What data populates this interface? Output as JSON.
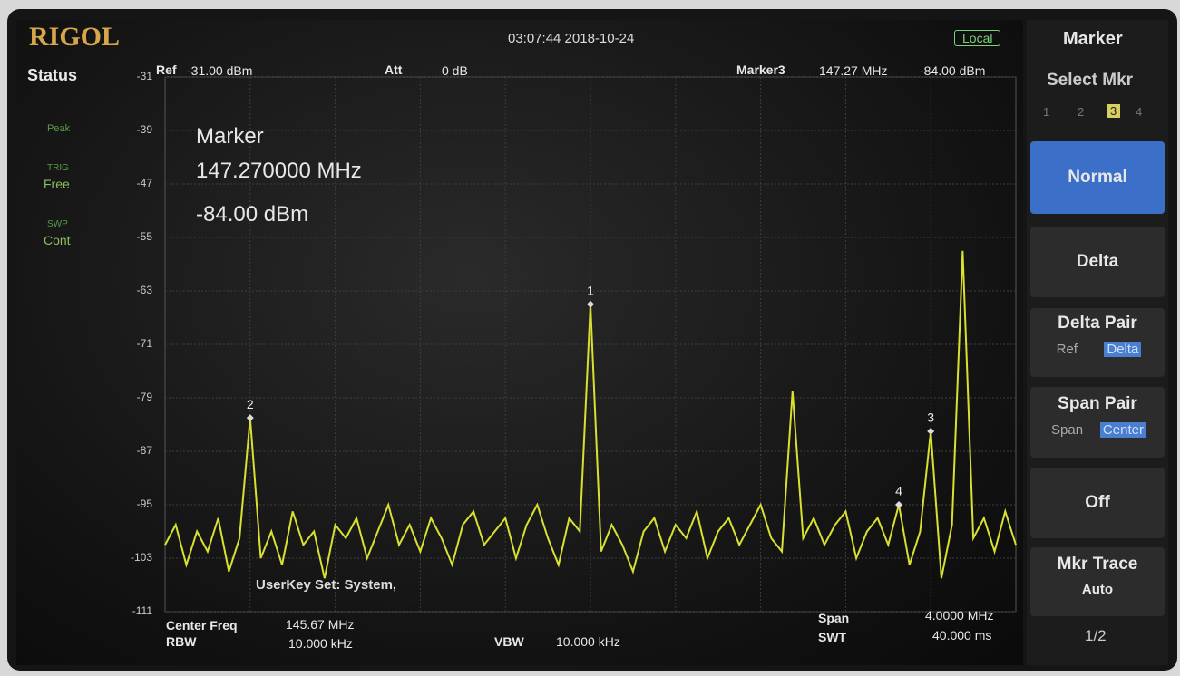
{
  "header": {
    "brand": "RIGOL",
    "datetime": "03:07:44 2018-10-24",
    "mode": "Local"
  },
  "status": {
    "title": "Status",
    "items": [
      "Peak",
      "TRIG",
      "Free",
      "SWP",
      "Cont"
    ]
  },
  "top_bar": {
    "ref_label": "Ref",
    "ref": "-31.00 dBm",
    "att_label": "Att",
    "att": "0 dB",
    "marker_label": "Marker3",
    "marker_freq": "147.27 MHz",
    "marker_level": "-84.00 dBm"
  },
  "marker_box": {
    "title": "Marker",
    "freq": "147.270000 MHz",
    "level": "-84.00 dBm"
  },
  "chart_data": {
    "type": "line",
    "x": [
      143.67,
      143.72,
      143.77,
      143.82,
      143.87,
      143.92,
      143.97,
      144.02,
      144.07,
      144.12,
      144.17,
      144.22,
      144.27,
      144.32,
      144.37,
      144.42,
      144.47,
      144.52,
      144.57,
      144.62,
      144.67,
      144.72,
      144.77,
      144.82,
      144.87,
      144.92,
      144.97,
      145.02,
      145.07,
      145.12,
      145.17,
      145.22,
      145.27,
      145.32,
      145.37,
      145.42,
      145.47,
      145.52,
      145.57,
      145.62,
      145.67,
      145.72,
      145.77,
      145.82,
      145.87,
      145.92,
      145.97,
      146.02,
      146.07,
      146.12,
      146.17,
      146.22,
      146.27,
      146.32,
      146.37,
      146.42,
      146.47,
      146.52,
      146.57,
      146.62,
      146.67,
      146.72,
      146.77,
      146.82,
      146.87,
      146.92,
      146.97,
      147.02,
      147.07,
      147.12,
      147.17,
      147.22,
      147.27,
      147.32,
      147.37,
      147.42,
      147.47,
      147.52,
      147.57,
      147.62,
      147.67
    ],
    "series": [
      {
        "color": "#d8e030",
        "values": [
          -101,
          -98,
          -104,
          -99,
          -102,
          -97,
          -105,
          -100,
          -82,
          -103,
          -99,
          -104,
          -96,
          -101,
          -99,
          -106,
          -98,
          -100,
          -97,
          -103,
          -99,
          -95,
          -101,
          -98,
          -102,
          -97,
          -100,
          -104,
          -98,
          -96,
          -101,
          -99,
          -97,
          -103,
          -98,
          -95,
          -100,
          -104,
          -97,
          -99,
          -65,
          -102,
          -98,
          -101,
          -105,
          -99,
          -97,
          -102,
          -98,
          -100,
          -96,
          -103,
          -99,
          -97,
          -101,
          -98,
          -95,
          -100,
          -102,
          -78,
          -100,
          -97,
          -101,
          -98,
          -96,
          -103,
          -99,
          -97,
          -101,
          -95,
          -104,
          -99,
          -84,
          -106,
          -98,
          -57,
          -100,
          -97,
          -102,
          -96,
          -101
        ]
      }
    ],
    "xlim": [
      143.67,
      147.67
    ],
    "ylim": [
      -111,
      -31
    ],
    "yticks": [
      -31,
      -39,
      -47,
      -55,
      -63,
      -71,
      -79,
      -87,
      -95,
      -103,
      -111
    ],
    "grid": true,
    "markers": [
      {
        "label": "1",
        "x": 145.67,
        "level": -65
      },
      {
        "label": "2",
        "x": 144.07,
        "level": -82
      },
      {
        "label": "3",
        "x": 147.27,
        "level": -84
      },
      {
        "label": "4",
        "x": 147.12,
        "level": -95
      }
    ],
    "overlay": "UserKey Set:  System,"
  },
  "footer": {
    "center_label": "Center Freq",
    "center": "145.67 MHz",
    "rbw_label": "RBW",
    "rbw": "10.000 kHz",
    "vbw_label": "VBW",
    "vbw": "10.000 kHz",
    "span_label": "Span",
    "span": "4.0000 MHz",
    "swt_label": "SWT",
    "swt": "40.000 ms"
  },
  "menu": {
    "title": "Marker",
    "select_label": "Select Mkr",
    "select_options": [
      "1",
      "2",
      "3",
      "4"
    ],
    "normal": "Normal",
    "delta": "Delta",
    "delta_pair": {
      "title": "Delta Pair",
      "options": [
        "Ref",
        "Delta"
      ]
    },
    "span_pair": {
      "title": "Span Pair",
      "options": [
        "Span",
        "Center"
      ]
    },
    "off": "Off",
    "mkr_trace": {
      "title": "Mkr Trace",
      "value": "Auto"
    },
    "page": "1/2"
  }
}
